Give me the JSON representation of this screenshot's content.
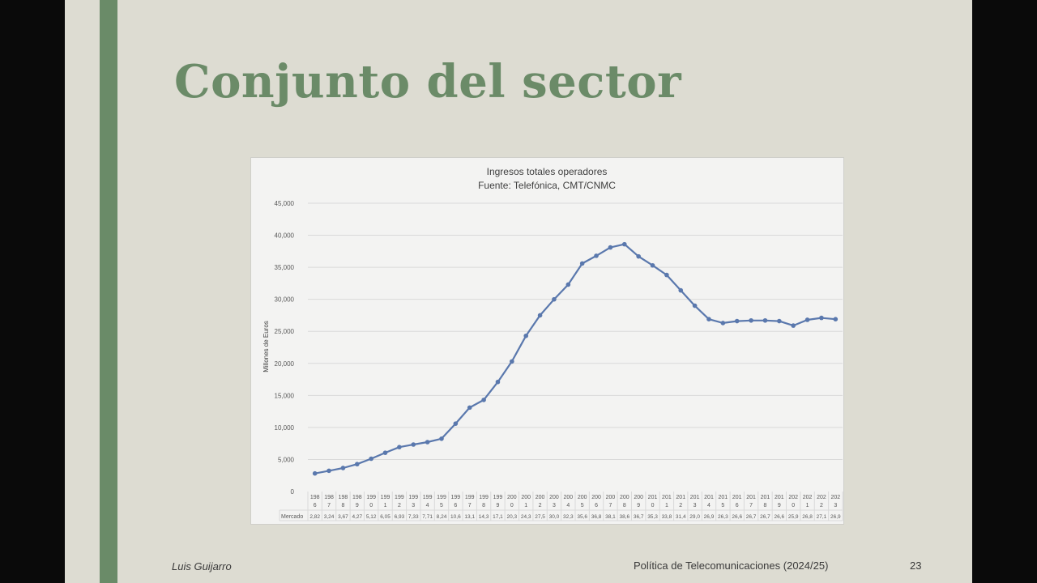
{
  "slide": {
    "title": "Conjunto del sector",
    "footer_author": "Luis Guijarro",
    "footer_course": "Política de Telecomunicaciones (2024/25)",
    "page_number": "23"
  },
  "colors": {
    "accent": "#6b8b68",
    "series": "#5a78ad",
    "slide_bg": "#dddcd2"
  },
  "chart_data": {
    "type": "line",
    "title": "Ingresos totales operadores",
    "subtitle": "Fuente: Telefónica, CMT/CNMC",
    "ylabel": "Millones de Euros",
    "xlabel": "",
    "ylim": [
      0,
      45000
    ],
    "yticks": [
      "0",
      "5,000",
      "10,000",
      "15,000",
      "20,000",
      "25,000",
      "30,000",
      "35,000",
      "40,000",
      "45,000"
    ],
    "grid": true,
    "table_row_label": "Mercado",
    "categories": [
      "1986",
      "1987",
      "1988",
      "1989",
      "1990",
      "1991",
      "1992",
      "1993",
      "1994",
      "1995",
      "1996",
      "1997",
      "1998",
      "1999",
      "2000",
      "2001",
      "2002",
      "2003",
      "2004",
      "2005",
      "2006",
      "2007",
      "2008",
      "2009",
      "2010",
      "2011",
      "2012",
      "2013",
      "2014",
      "2015",
      "2016",
      "2017",
      "2018",
      "2019",
      "2020",
      "2021",
      "2022",
      "2023"
    ],
    "table_values": [
      "2,82",
      "3,24",
      "3,67",
      "4,27",
      "5,12",
      "6,05",
      "6,93",
      "7,33",
      "7,71",
      "8,24",
      "10,6",
      "13,1",
      "14,3",
      "17,1",
      "20,3",
      "24,3",
      "27,5",
      "30,0",
      "32,3",
      "35,6",
      "36,8",
      "38,1",
      "38,6",
      "36,7",
      "35,3",
      "33,8",
      "31,4",
      "29,0",
      "26,9",
      "26,3",
      "26,6",
      "26,7",
      "26,7",
      "26,6",
      "25,9",
      "26,8",
      "27,1",
      "26,9"
    ],
    "series": [
      {
        "name": "Mercado",
        "values": [
          2820,
          3240,
          3670,
          4270,
          5120,
          6050,
          6930,
          7330,
          7710,
          8240,
          10600,
          13100,
          14300,
          17100,
          20300,
          24300,
          27500,
          30000,
          32300,
          35600,
          36800,
          38100,
          38600,
          36700,
          35300,
          33800,
          31400,
          29000,
          26900,
          26300,
          26600,
          26700,
          26700,
          26600,
          25900,
          26800,
          27100,
          26900
        ]
      }
    ]
  }
}
